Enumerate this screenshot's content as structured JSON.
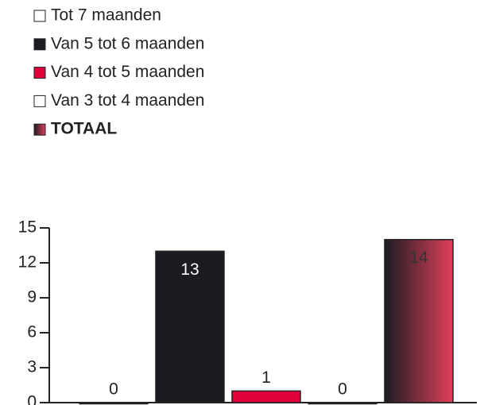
{
  "chart_data": {
    "type": "bar",
    "categories": [
      "Tot 7 maanden",
      "Van 5 tot 6 maanden",
      "Van 4 tot 5 maanden",
      "Van 3 tot 4 maanden",
      "TOTAAL"
    ],
    "values": [
      0,
      13,
      1,
      0,
      14
    ],
    "colors": [
      "#ffffff",
      "#1c1b22",
      "#e0003a",
      "#ffffff",
      [
        "#1c1b22",
        "#e0405a"
      ]
    ],
    "ylim": [
      0,
      15
    ],
    "yticks": [
      0,
      3,
      6,
      9,
      12,
      15
    ]
  }
}
